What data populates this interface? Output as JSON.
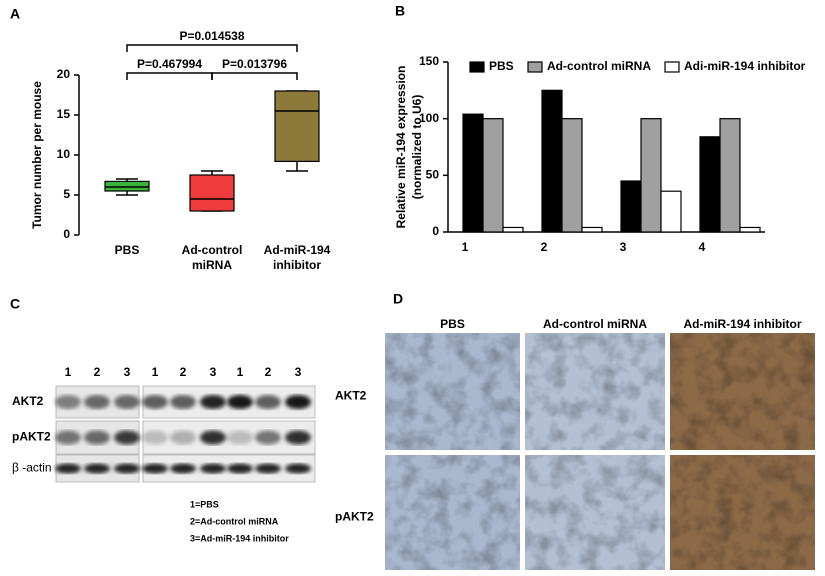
{
  "panel_labels": [
    "A",
    "B",
    "C",
    "D"
  ],
  "chart_data": [
    {
      "type": "box",
      "y_label": "Tumor number per mouse",
      "categories": [
        "PBS",
        "Ad-control miRNA",
        "Ad-miR-194 inhibitor"
      ],
      "boxes": [
        {
          "min": 5,
          "q1": 5.5,
          "median": 6,
          "q3": 6.7,
          "max": 7,
          "color": "#3cb43c"
        },
        {
          "min": 3,
          "q1": 3,
          "median": 4.5,
          "q3": 7.5,
          "max": 8,
          "color": "#f03c3c"
        },
        {
          "min": 8,
          "q1": 9.2,
          "median": 15.5,
          "q3": 18,
          "max": 18,
          "color": "#8b7a3a"
        }
      ],
      "ylim": [
        0,
        20
      ],
      "yticks": [
        0,
        5,
        10,
        15,
        20
      ],
      "annotations": [
        "P=0.014538",
        "P=0.467994",
        "P=0.013796"
      ]
    },
    {
      "type": "bar",
      "y_label": [
        "Relative miR-194 expression",
        "(normalized to U6)"
      ],
      "categories": [
        "1",
        "2",
        "3",
        "4"
      ],
      "series": [
        {
          "name": "PBS",
          "color": "#000000",
          "values": [
            104,
            125,
            45,
            84
          ]
        },
        {
          "name": "Ad-control miRNA",
          "color": "#a0a0a0",
          "values": [
            100,
            100,
            100,
            100
          ]
        },
        {
          "name": "Adi-miR-194 inhibitor",
          "color": "#ffffff",
          "values": [
            4,
            4,
            36,
            4
          ]
        }
      ],
      "ylim": [
        0,
        150
      ],
      "yticks": [
        0,
        50,
        100,
        150
      ]
    }
  ],
  "western_blot": {
    "lanes": [
      "1",
      "2",
      "3",
      "1",
      "2",
      "3",
      "1",
      "2",
      "3"
    ],
    "rows": [
      "AKT2",
      "pAKT2",
      "β -actin"
    ],
    "key": [
      "1=PBS",
      "2=Ad-control miRNA",
      "3=Ad-miR-194 inhibitor"
    ]
  },
  "ihc": {
    "columns": [
      "PBS",
      "Ad-control miRNA",
      "Ad-miR-194 inhibitor"
    ],
    "rows": [
      "AKT2",
      "pAKT2"
    ]
  }
}
